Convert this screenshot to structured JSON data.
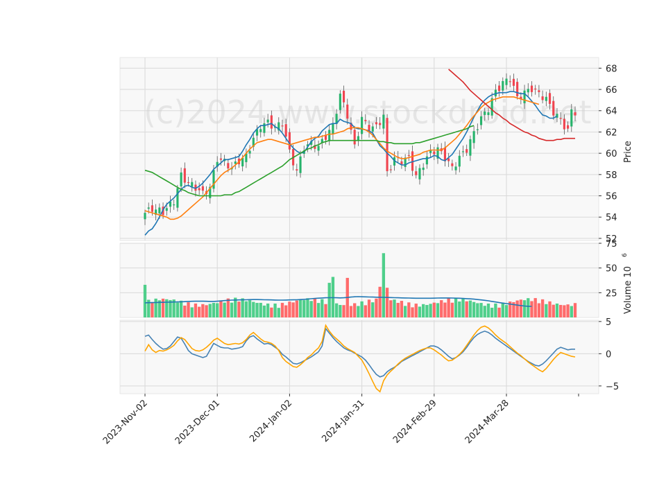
{
  "chart_data": {
    "type": "candlestick",
    "watermark": "(c)2024 www.stockdroid.net",
    "x_tick_labels": [
      "2023-Nov-02",
      "2023-Dec-01",
      "2024-Jan-02",
      "2024-Jan-31",
      "2024-Feb-29",
      "2024-Mar-28"
    ],
    "x_tick_index": [
      0,
      20,
      40,
      60,
      80,
      100
    ],
    "n_bars": 120,
    "panels": {
      "price": {
        "ylabel": "Price",
        "ylim": [
          51.8,
          69.0
        ],
        "yticks": [
          "52",
          "54",
          "56",
          "58",
          "60",
          "62",
          "64",
          "66",
          "68"
        ],
        "ytick_values": [
          52,
          54,
          56,
          58,
          60,
          62,
          64,
          66,
          68
        ]
      },
      "volume": {
        "ylabel": "Volume  10",
        "ylabel_exponent": "6",
        "ylim": [
          0,
          75
        ],
        "yticks": [
          "25",
          "50",
          "75"
        ],
        "ytick_values": [
          25,
          50,
          75
        ]
      },
      "indicator": {
        "ylim": [
          -6.2,
          5.2
        ],
        "yticks": [
          "−5",
          "0",
          "5"
        ],
        "ytick_values": [
          -5,
          0,
          5
        ]
      }
    },
    "close_anchors": [
      [
        0,
        54.4
      ],
      [
        2,
        54.8
      ],
      [
        5,
        54.5
      ],
      [
        8,
        55.5
      ],
      [
        10,
        57.9
      ],
      [
        12,
        57.2
      ],
      [
        14,
        56.8
      ],
      [
        16,
        56.2
      ],
      [
        18,
        56.8
      ],
      [
        20,
        59.5
      ],
      [
        22,
        59.2
      ],
      [
        24,
        58.6
      ],
      [
        26,
        59.3
      ],
      [
        28,
        59.7
      ],
      [
        30,
        61.4
      ],
      [
        32,
        62.6
      ],
      [
        34,
        62.9
      ],
      [
        36,
        62.4
      ],
      [
        38,
        62.9
      ],
      [
        40,
        60.1
      ],
      [
        42,
        58.3
      ],
      [
        44,
        60.6
      ],
      [
        46,
        60.9
      ],
      [
        48,
        60.6
      ],
      [
        50,
        61.6
      ],
      [
        52,
        62.6
      ],
      [
        54,
        65.5
      ],
      [
        56,
        63.6
      ],
      [
        58,
        60.6
      ],
      [
        60,
        63.3
      ],
      [
        62,
        62.3
      ],
      [
        64,
        62.5
      ],
      [
        66,
        63.5
      ],
      [
        67,
        58.1
      ],
      [
        69,
        59.5
      ],
      [
        71,
        59.3
      ],
      [
        73,
        59.6
      ],
      [
        75,
        57.8
      ],
      [
        77,
        59.0
      ],
      [
        79,
        60.1
      ],
      [
        81,
        60.4
      ],
      [
        83,
        59.6
      ],
      [
        85,
        58.6
      ],
      [
        87,
        59.6
      ],
      [
        89,
        60.4
      ],
      [
        91,
        61.9
      ],
      [
        93,
        63.3
      ],
      [
        95,
        64.2
      ],
      [
        97,
        65.8
      ],
      [
        99,
        66.6
      ],
      [
        101,
        67.1
      ],
      [
        103,
        65.2
      ],
      [
        105,
        65.7
      ],
      [
        107,
        66.1
      ],
      [
        109,
        65.6
      ],
      [
        111,
        65.1
      ],
      [
        113,
        63.9
      ],
      [
        115,
        63.1
      ],
      [
        117,
        62.1
      ],
      [
        118,
        64.0
      ],
      [
        119,
        63.9
      ]
    ],
    "series": [
      {
        "name": "",
        "color": "#1f77b4",
        "values": [
          52.3,
          52.7,
          52.9,
          53.4,
          54.0,
          54.7,
          55.2,
          55.5,
          55.8,
          56.2,
          56.6,
          56.9,
          57.0,
          56.8,
          56.7,
          56.9,
          57.2,
          57.6,
          58.0,
          58.5,
          58.8,
          59.1,
          59.4,
          59.4,
          59.5,
          59.6,
          59.7,
          60.2,
          60.8,
          61.3,
          61.9,
          62.3,
          62.6,
          62.6,
          62.7,
          62.8,
          62.5,
          62.3,
          61.9,
          61.4,
          60.9,
          60.5,
          60.2,
          60.0,
          60.1,
          60.6,
          61.1,
          61.4,
          61.6,
          62.1,
          62.4,
          62.7,
          62.8,
          62.8,
          63.2,
          63.0,
          62.9,
          62.8,
          62.4,
          62.3,
          62.3,
          62.2,
          62.1,
          61.9,
          61.3,
          60.7,
          60.4,
          60.0,
          59.7,
          59.3,
          59.1,
          58.9,
          58.9,
          59.1,
          59.2,
          59.3,
          59.4,
          59.5,
          59.5,
          59.6,
          59.8,
          59.7,
          59.4,
          59.3,
          59.6,
          59.9,
          60.4,
          60.9,
          61.4,
          62.0,
          62.7,
          63.4,
          64.0,
          64.6,
          65.0,
          65.3,
          65.5,
          65.6,
          65.7,
          65.7,
          65.7,
          65.8,
          65.8,
          65.7,
          65.6,
          65.6,
          65.3,
          64.9,
          64.5,
          64.0,
          63.6,
          63.5,
          63.3,
          63.3,
          63.5
        ]
      },
      {
        "name": "",
        "color": "#ff7f0e",
        "values": [
          54.6,
          54.5,
          54.4,
          54.3,
          54.2,
          54.1,
          54.0,
          53.8,
          53.8,
          53.9,
          54.1,
          54.4,
          54.7,
          55.0,
          55.3,
          55.6,
          55.9,
          56.3,
          56.7,
          57.1,
          57.5,
          57.9,
          58.2,
          58.4,
          58.6,
          58.9,
          59.2,
          59.6,
          60.0,
          60.4,
          60.7,
          61.0,
          61.1,
          61.2,
          61.3,
          61.3,
          61.2,
          61.1,
          61.0,
          60.9,
          60.8,
          60.9,
          61.0,
          61.1,
          61.2,
          61.3,
          61.4,
          61.5,
          61.5,
          61.6,
          61.7,
          61.8,
          61.8,
          61.9,
          62.0,
          62.1,
          62.3,
          62.4,
          62.4,
          62.4,
          62.3,
          62.2,
          62.0,
          61.7,
          61.3,
          60.9,
          60.5,
          60.2,
          60.0,
          59.8,
          59.6,
          59.5,
          59.5,
          59.6,
          59.7,
          59.8,
          59.9,
          60.1,
          60.2,
          60.3,
          60.3,
          60.3,
          60.3,
          60.5,
          60.8,
          61.1,
          61.4,
          61.8,
          62.2,
          62.6,
          63.1,
          63.5,
          63.9,
          64.3,
          64.6,
          64.8,
          65.0,
          65.1,
          65.2,
          65.3,
          65.3,
          65.3,
          65.3,
          65.2,
          65.1,
          65.0,
          64.9,
          64.8,
          64.7,
          64.6
        ]
      },
      {
        "name": "",
        "color": "#2ca02c",
        "values": [
          58.4,
          58.3,
          58.2,
          58.0,
          57.8,
          57.6,
          57.4,
          57.2,
          57.0,
          56.8,
          56.6,
          56.5,
          56.3,
          56.2,
          56.1,
          56.0,
          56.0,
          56.0,
          56.0,
          56.0,
          56.0,
          56.0,
          56.1,
          56.1,
          56.1,
          56.3,
          56.4,
          56.6,
          56.8,
          57.0,
          57.2,
          57.4,
          57.6,
          57.8,
          58.0,
          58.2,
          58.4,
          58.6,
          58.8,
          59.1,
          59.4,
          59.6,
          59.8,
          60.0,
          60.2,
          60.4,
          60.5,
          60.7,
          60.8,
          61.0,
          61.1,
          61.2,
          61.2,
          61.2,
          61.2,
          61.2,
          61.2,
          61.2,
          61.2,
          61.2,
          61.2,
          61.2,
          61.2,
          61.2,
          61.2,
          61.1,
          61.1,
          61.0,
          61.0,
          60.9,
          60.9,
          60.9,
          60.9,
          60.9,
          60.9,
          61.0,
          61.0,
          61.1,
          61.2,
          61.3,
          61.4,
          61.5,
          61.6,
          61.7,
          61.8,
          61.9,
          62.0,
          62.1,
          62.2,
          62.3,
          62.5,
          62.6
        ]
      },
      {
        "name": "",
        "color": "#d62728",
        "values": [
          67.9,
          67.6,
          67.3,
          67.0,
          66.7,
          66.3,
          65.9,
          65.6,
          65.3,
          65.0,
          64.7,
          64.4,
          64.1,
          63.8,
          63.6,
          63.3,
          63.1,
          62.8,
          62.6,
          62.4,
          62.2,
          62.0,
          61.9,
          61.7,
          61.6,
          61.4,
          61.3,
          61.2,
          61.2,
          61.2,
          61.3,
          61.3,
          61.4,
          61.4,
          61.4,
          61.4
        ]
      },
      {
        "name": "",
        "color": "#4682b4",
        "values": [
          2.7,
          2.9,
          2.2,
          1.6,
          1.1,
          0.7,
          0.8,
          1.2,
          1.9,
          2.6,
          2.4,
          1.5,
          0.5,
          0.0,
          -0.2,
          -0.4,
          -0.6,
          -0.4,
          0.6,
          1.6,
          1.3,
          1.0,
          0.9,
          0.9,
          0.7,
          0.8,
          0.9,
          1.1,
          2.0,
          2.6,
          2.8,
          2.3,
          1.9,
          1.5,
          1.6,
          1.4,
          1.0,
          0.6,
          -0.1,
          -0.5,
          -1.0,
          -1.5,
          -1.6,
          -1.4,
          -1.1,
          -0.8,
          -0.5,
          -0.1,
          0.3,
          1.2,
          3.9,
          3.2,
          2.5,
          1.9,
          1.4,
          0.9,
          0.6,
          0.4,
          0.1,
          -0.2,
          -0.5,
          -1.0,
          -1.7,
          -2.5,
          -3.2,
          -3.6,
          -3.4,
          -2.8,
          -2.4,
          -2.1,
          -1.7,
          -1.2,
          -0.9,
          -0.6,
          -0.3,
          0.0,
          0.3,
          0.6,
          0.9,
          1.2,
          1.2,
          1.0,
          0.6,
          0.1,
          -0.4,
          -0.8,
          -0.6,
          -0.2,
          0.3,
          1.0,
          1.8,
          2.5,
          3.0,
          3.3,
          3.5,
          3.3,
          2.9,
          2.4,
          2.0,
          1.6,
          1.2,
          0.8,
          0.4,
          0.0,
          -0.4,
          -0.8,
          -1.2,
          -1.5,
          -1.8,
          -1.9,
          -1.6,
          -1.1,
          -0.5,
          0.1,
          0.7,
          1.0,
          0.8,
          0.6,
          0.7,
          0.7
        ]
      },
      {
        "name": "",
        "color": "#ffa500",
        "values": [
          0.4,
          1.4,
          0.6,
          0.2,
          0.5,
          0.4,
          0.6,
          0.9,
          1.3,
          2.0,
          2.5,
          2.2,
          1.5,
          0.8,
          0.5,
          0.4,
          0.6,
          1.0,
          1.5,
          2.1,
          2.4,
          2.0,
          1.6,
          1.4,
          1.5,
          1.6,
          1.5,
          1.7,
          2.2,
          2.9,
          3.3,
          2.8,
          2.3,
          1.9,
          1.8,
          1.6,
          1.2,
          0.5,
          -0.6,
          -1.2,
          -1.6,
          -2.0,
          -2.1,
          -1.7,
          -1.2,
          -0.6,
          -0.2,
          0.4,
          0.9,
          1.9,
          4.4,
          3.5,
          2.8,
          2.3,
          1.8,
          1.2,
          0.8,
          0.5,
          0.2,
          -0.4,
          -1.0,
          -2.0,
          -3.1,
          -4.3,
          -5.4,
          -5.9,
          -4.2,
          -3.3,
          -2.7,
          -2.2,
          -1.6,
          -1.1,
          -0.7,
          -0.4,
          -0.1,
          0.2,
          0.5,
          0.7,
          0.9,
          0.9,
          0.6,
          0.2,
          -0.2,
          -0.7,
          -1.1,
          -1.0,
          -0.6,
          -0.1,
          0.5,
          1.3,
          2.1,
          2.9,
          3.6,
          4.1,
          4.3,
          4.0,
          3.5,
          2.9,
          2.4,
          2.0,
          1.6,
          1.1,
          0.6,
          0.1,
          -0.3,
          -0.8,
          -1.3,
          -1.7,
          -2.1,
          -2.5,
          -2.8,
          -2.3,
          -1.6,
          -0.9,
          -0.3,
          0.2,
          0.0,
          -0.2,
          -0.4,
          -0.5
        ]
      }
    ],
    "series_start": [
      0,
      0,
      0,
      84,
      0,
      0
    ],
    "series_panel": [
      "price",
      "price",
      "price",
      "price",
      "indicator",
      "indicator"
    ],
    "volume_avg": [
      14.8,
      14.9,
      15.0,
      15.1,
      15.2,
      15.3,
      15.4,
      15.5,
      15.6,
      15.7,
      15.8,
      16.0,
      16.2,
      16.3,
      16.4,
      16.4,
      16.4,
      16.3,
      16.2,
      16.2,
      16.4,
      16.7,
      17.0,
      17.3,
      17.5,
      17.6,
      17.7,
      17.8,
      17.9,
      18.0,
      18.1,
      18.1,
      18.0,
      17.9,
      17.8,
      17.7,
      17.6,
      17.5,
      17.5,
      17.6,
      17.7,
      17.8,
      17.9,
      18.1,
      18.3,
      18.6,
      18.9,
      19.2,
      19.5,
      19.7,
      19.9,
      20.0,
      20.0,
      19.9,
      19.8,
      19.9,
      20.2,
      20.6,
      20.9,
      21.0,
      20.9,
      20.8,
      20.7,
      20.6,
      20.5,
      20.4,
      20.3,
      20.2,
      20.1,
      20.0,
      19.9,
      19.8,
      19.7,
      19.6,
      19.5,
      19.4,
      19.4,
      19.4,
      19.4,
      19.4,
      19.5,
      19.6,
      19.7,
      19.7,
      19.7,
      19.6,
      19.5,
      19.4,
      19.2,
      19.0,
      18.8,
      18.5,
      18.1,
      17.7,
      17.3,
      16.8,
      16.2,
      15.6,
      15.0,
      14.5,
      14.0,
      13.5,
      13.0,
      12.5,
      12.0,
      11.6,
      11.3,
      11.2
    ]
  }
}
